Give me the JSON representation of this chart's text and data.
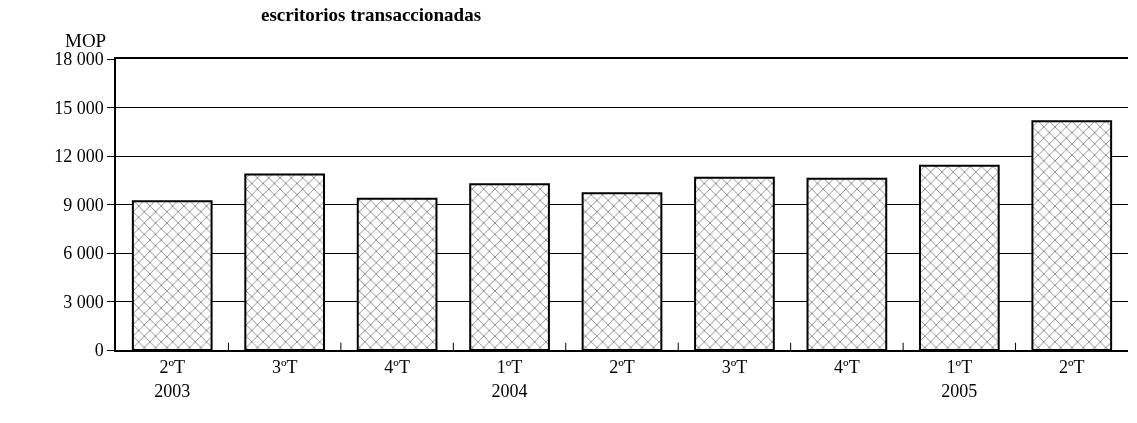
{
  "chart_data": {
    "type": "bar",
    "title": "escritorios transaccionadas",
    "ylabel": "MOP",
    "categories": [
      "2ºT\n2003",
      "3ºT",
      "4ºT",
      "1ºT\n2004",
      "2ºT",
      "3ºT",
      "4ºT",
      "1ºT\n2005",
      "2ºT"
    ],
    "values": [
      9200,
      10850,
      9350,
      10250,
      9700,
      10650,
      10600,
      11400,
      14150
    ],
    "color": "#000000",
    "ylim": [
      0,
      18000
    ],
    "yticks": [
      0,
      {
        "value": 3000,
        "label": "3 000"
      },
      {
        "value": 6000,
        "label": "6 000"
      },
      {
        "value": 9000,
        "label": "9 000"
      },
      {
        "value": 12000,
        "label": "12 000"
      },
      {
        "value": 15000,
        "label": "15 000"
      },
      {
        "value": 18000,
        "label": "18 000"
      }
    ],
    "grid": "y",
    "legend": false
  }
}
